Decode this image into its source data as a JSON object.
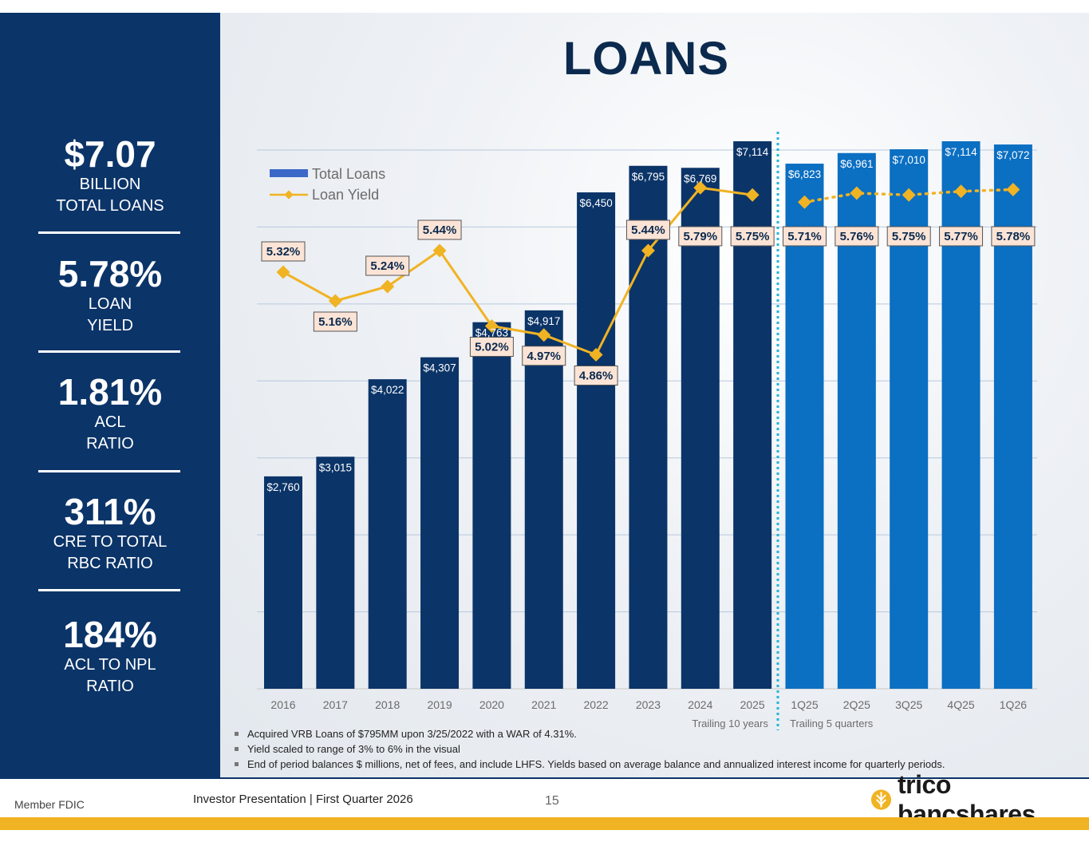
{
  "title": "LOANS",
  "sidebar": {
    "kpis": [
      {
        "value": "$7.07",
        "label1": "BILLION",
        "label2": "TOTAL LOANS"
      },
      {
        "value": "5.78%",
        "label1": "LOAN",
        "label2": "YIELD"
      },
      {
        "value": "1.81%",
        "label1": "ACL",
        "label2": "RATIO"
      },
      {
        "value": "311%",
        "label1": "CRE TO TOTAL",
        "label2": "RBC RATIO"
      },
      {
        "value": "184%",
        "label1": "ACL TO NPL",
        "label2": "RATIO"
      }
    ]
  },
  "chart_data": {
    "type": "bar",
    "categories": [
      "2016",
      "2017",
      "2018",
      "2019",
      "2020",
      "2021",
      "2022",
      "2023",
      "2024",
      "2025",
      "1Q25",
      "2Q25",
      "3Q25",
      "4Q25",
      "1Q26"
    ],
    "series": [
      {
        "name": "Total Loans",
        "type": "bar",
        "values": [
          2760,
          3015,
          4022,
          4307,
          4763,
          4917,
          6450,
          6795,
          6769,
          7114,
          6823,
          6961,
          7010,
          7114,
          7072
        ],
        "labels": [
          "$2,760",
          "$3,015",
          "$4,022",
          "$4,307",
          "$4,763",
          "$4,917",
          "$6,450",
          "$6,795",
          "$6,769",
          "$7,114",
          "$6,823",
          "$6,961",
          "$7,010",
          "$7,114",
          "$7,072"
        ]
      },
      {
        "name": "Loan Yield",
        "type": "line",
        "values": [
          5.32,
          5.16,
          5.24,
          5.44,
          5.02,
          4.97,
          4.86,
          5.44,
          5.79,
          5.75,
          5.71,
          5.76,
          5.75,
          5.77,
          5.78
        ],
        "labels": [
          "5.32%",
          "5.16%",
          "5.24%",
          "5.44%",
          "5.02%",
          "4.97%",
          "4.86%",
          "5.44%",
          "5.79%",
          "5.75%",
          "5.71%",
          "5.76%",
          "5.75%",
          "5.77%",
          "5.78%"
        ]
      }
    ],
    "ylim": [
      0,
      7000
    ],
    "y2lim": [
      3,
      6
    ],
    "grid": true,
    "legend": "top-left",
    "group_labels": [
      "Trailing 10 years",
      "Trailing 5 quarters"
    ],
    "colors": {
      "annual_bar": "#0b3468",
      "quarterly_bar": "#0b6fc2",
      "yield_line": "#f0b323",
      "divider": "#1fb6d6"
    }
  },
  "notes": [
    "Acquired VRB Loans of $795MM upon 3/25/2022 with a WAR of 4.31%.",
    "Yield scaled to range of 3% to 6% in the visual",
    "End of period balances $ millions, net of fees, and include LHFS. Yields based on average balance and annualized interest income for quarterly periods."
  ],
  "footer": {
    "member": "Member FDIC",
    "presentation": "Investor Presentation  |  First Quarter 2026",
    "page": "15",
    "logo": "trico bancshares"
  }
}
